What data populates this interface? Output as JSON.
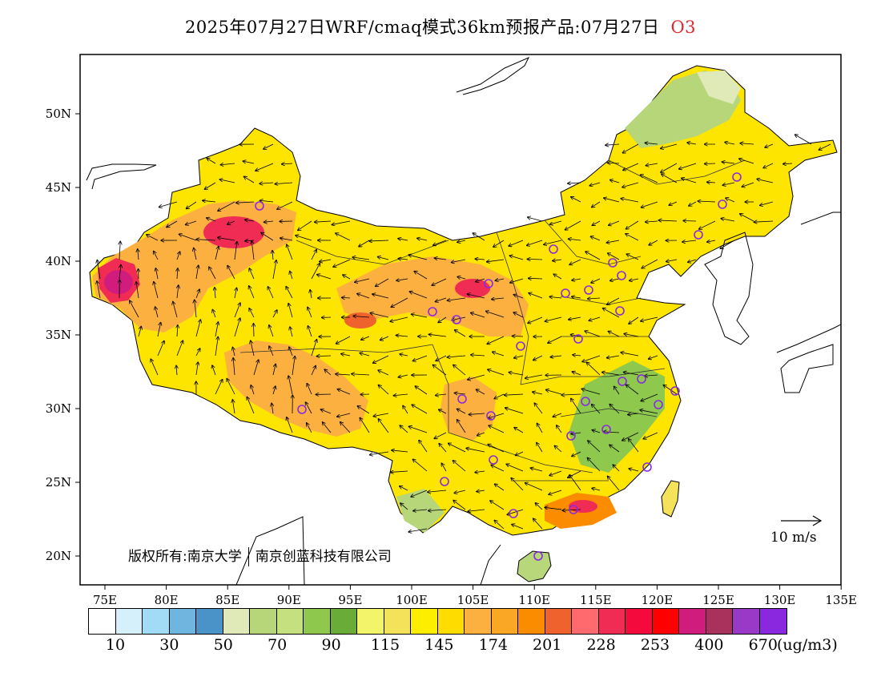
{
  "title": {
    "text": "2025年07月27日WRF/cmaq模式36km预报产品:07月27日",
    "species": "O3"
  },
  "axes": {
    "lon_labels": [
      "75E",
      "80E",
      "85E",
      "90E",
      "95E",
      "100E",
      "105E",
      "110E",
      "115E",
      "120E",
      "125E",
      "130E",
      "135E"
    ],
    "lat_labels": [
      "20N",
      "25N",
      "30N",
      "35N",
      "40N",
      "45N",
      "50N"
    ]
  },
  "copyright": {
    "part1": "版权所有:南京大学",
    "part2": "南京创蓝科技有限公司"
  },
  "wind_scale": {
    "label": "10 m/s"
  },
  "colorbar": {
    "colors": [
      "#ffffff",
      "#d6f0fb",
      "#a1dbf5",
      "#6eb5e0",
      "#4a93c8",
      "#dfeab8",
      "#b7d67a",
      "#c5e07f",
      "#8ec84c",
      "#6aac38",
      "#f2f46a",
      "#f4e25a",
      "#fdee00",
      "#fedc00",
      "#fbb040",
      "#fba726",
      "#fb8c00",
      "#f0622d",
      "#fe6a6e",
      "#f02c55",
      "#f40a3c",
      "#fe0000",
      "#d01c7c",
      "#a8325c",
      "#9a38c8",
      "#8a28e0"
    ],
    "labels": [
      "10",
      "30",
      "50",
      "70",
      "90",
      "115",
      "145",
      "174",
      "201",
      "228",
      "253",
      "400",
      "670"
    ],
    "unit": "(ug/m3)"
  },
  "map": {
    "region": "China",
    "extent": {
      "lon": [
        73,
        135
      ],
      "lat": [
        18,
        54
      ]
    },
    "field": "O3 concentration with wind vectors",
    "cities": "purple circle markers"
  }
}
